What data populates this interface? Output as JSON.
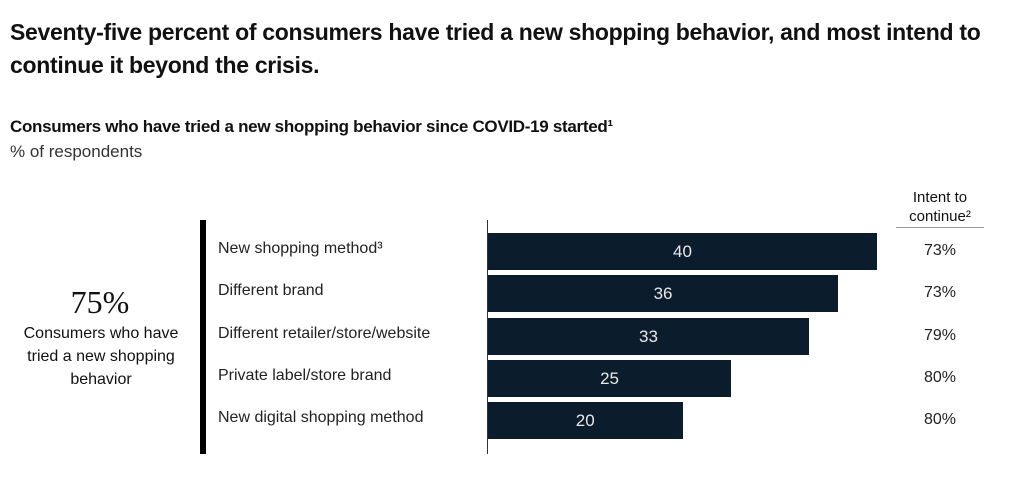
{
  "title": "Seventy-five percent of consumers have tried a new shopping behavior, and most intend to continue it beyond the crisis.",
  "subtitle": "Consumers who have tried a new shopping behavior since COVID-19 started¹",
  "unit": "% of respondents",
  "summary": {
    "value": "75%",
    "caption": "Consumers who have tried a new shopping behavior"
  },
  "intent_header": "Intent to continue²",
  "colors": {
    "bar": "#0b1c2c"
  },
  "chart_data": {
    "type": "bar",
    "orientation": "horizontal",
    "title": "Consumers who have tried a new shopping behavior since COVID-19 started¹",
    "ylabel": "% of respondents",
    "categories": [
      "New shopping method³",
      "Different brand",
      "Different retailer/store/website",
      "Private label/store brand",
      "New digital shopping method"
    ],
    "values": [
      40,
      36,
      33,
      25,
      20
    ],
    "value_labels": [
      "40",
      "36",
      "33",
      "25",
      "20"
    ],
    "intent_to_continue": [
      "73%",
      "73%",
      "79%",
      "80%",
      "80%"
    ],
    "xlim": [
      0,
      40
    ],
    "grid": false
  }
}
